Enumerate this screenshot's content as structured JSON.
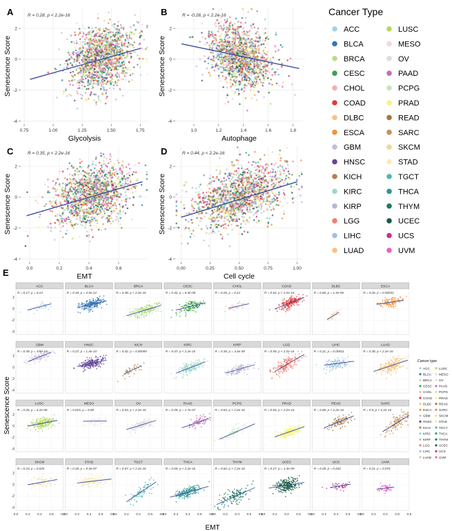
{
  "figure": {
    "colors": {
      "ACC": "#a8cfe6",
      "BLCA": "#2f78b8",
      "BRCA": "#b9dc8f",
      "CESC": "#3da04a",
      "CHOL": "#f2aeb0",
      "COAD": "#e23a3c",
      "DLBC": "#f6c28c",
      "ESCA": "#f29331",
      "GBM": "#cdb9da",
      "HNSC": "#6b4397",
      "KICH": "#b5804f",
      "KIRC": "#9fd6cc",
      "KIRP": "#b9b5d5",
      "LGG": "#f27f6f",
      "LIHC": "#9ec2de",
      "LUAD": "#f7c27d",
      "LUSC": "#b3d85d",
      "MESO": "#f6d5df",
      "OV": "#dcdcdc",
      "PAAD": "#c96bb2",
      "PCPG": "#c7e6b9",
      "PRAD": "#f7f37e",
      "READ": "#a8773a",
      "SARC": "#c59256",
      "SKCM": "#ecd89a",
      "STAD": "#faebb5",
      "TGCT": "#4cb8ac",
      "THCA": "#2f9693",
      "THYM": "#1c7a5d",
      "UCEC": "#1b5b42",
      "UCS": "#c2348c",
      "UVM": "#e363c9",
      "fit_line": "#3b4ea3"
    },
    "cancer_types": [
      "ACC",
      "BLCA",
      "BRCA",
      "CESC",
      "CHOL",
      "COAD",
      "DLBC",
      "ESCA",
      "GBM",
      "HNSC",
      "KICH",
      "KIRC",
      "KIRP",
      "LGG",
      "LIHC",
      "LUAD",
      "LUSC",
      "MESO",
      "OV",
      "PAAD",
      "PCPG",
      "PRAD",
      "READ",
      "SARC",
      "SKCM",
      "STAD",
      "TGCT",
      "THCA",
      "THYM",
      "UCEC",
      "UCS",
      "UVM"
    ],
    "legend_main_title": "Cancer Type",
    "legend_small_title": "Cancer type",
    "panel_e_label": "E",
    "panel_e_ylabel": "Senescence Score",
    "panel_e_xlabel": "EMT"
  },
  "chart_data": [
    {
      "type": "scatter",
      "panel": "A",
      "xlabel": "Glycolysis",
      "ylabel": "Senescence Score",
      "annotation": "R = 0.28, p < 2.2e-16",
      "xlim": [
        0.72,
        1.82
      ],
      "ylim": [
        -4.2,
        3.3
      ],
      "xticks": [
        0.75,
        1.0,
        1.25,
        1.5,
        1.75
      ],
      "xtick_labels": [
        "0.75",
        "1.00",
        "1.25",
        "1.50",
        "1.75"
      ],
      "yticks": [
        -4,
        -2,
        0,
        2
      ],
      "ytick_labels": [
        "-4",
        "-2",
        "0",
        "2"
      ],
      "cloud": {
        "x_center": 1.42,
        "x_sd": 0.14,
        "y_center": 0.15,
        "y_sd": 1.0,
        "r": 0.28
      },
      "fit": {
        "x": [
          0.8,
          1.75
        ],
        "y": [
          -1.3,
          0.7
        ]
      }
    },
    {
      "type": "scatter",
      "panel": "B",
      "xlabel": "Autophage",
      "ylabel": "Senescence Score",
      "annotation": "R = -0.28, p < 2.2e-16",
      "xlim": [
        0.85,
        1.88
      ],
      "ylim": [
        -4.2,
        3.3
      ],
      "xticks": [
        1.0,
        1.2,
        1.4,
        1.6,
        1.8
      ],
      "xtick_labels": [
        "1.0",
        "1.2",
        "1.4",
        "1.6",
        "1.8"
      ],
      "yticks": [
        -4,
        -2,
        0,
        2
      ],
      "ytick_labels": [
        "-4",
        "-2",
        "0",
        "2"
      ],
      "cloud": {
        "x_center": 1.38,
        "x_sd": 0.13,
        "y_center": 0.15,
        "y_sd": 1.0,
        "r": -0.28
      },
      "fit": {
        "x": [
          0.9,
          1.85
        ],
        "y": [
          1.0,
          -0.6
        ]
      }
    },
    {
      "type": "scatter",
      "panel": "C",
      "xlabel": "EMT",
      "ylabel": "Senescence Score",
      "annotation": "R = 0.35, p < 2.2e-16",
      "xlim": [
        -0.06,
        0.8
      ],
      "ylim": [
        -4.2,
        3.3
      ],
      "xticks": [
        0.0,
        0.2,
        0.4,
        0.6
      ],
      "xtick_labels": [
        "0.0",
        "0.2",
        "0.4",
        "0.6"
      ],
      "yticks": [
        -4,
        -2,
        0,
        2
      ],
      "ytick_labels": [
        "-4",
        "-2",
        "0",
        "2"
      ],
      "cloud": {
        "x_center": 0.42,
        "x_sd": 0.13,
        "y_center": 0.15,
        "y_sd": 1.0,
        "r": 0.35
      },
      "fit": {
        "x": [
          -0.02,
          0.76
        ],
        "y": [
          -1.2,
          1.0
        ]
      }
    },
    {
      "type": "scatter",
      "panel": "D",
      "xlabel": "Cell cycle",
      "ylabel": "Senescence Score",
      "annotation": "R = 0.44, p < 2.2e-16",
      "xlim": [
        -0.05,
        1.05
      ],
      "ylim": [
        -4.2,
        3.3
      ],
      "xticks": [
        0.0,
        0.25,
        0.5,
        0.75,
        1.0
      ],
      "xtick_labels": [
        "0.00",
        "0.25",
        "0.50",
        "0.75",
        "1.00"
      ],
      "yticks": [
        -4,
        -2,
        0,
        2
      ],
      "ytick_labels": [
        "-4",
        "-2",
        "0",
        "2"
      ],
      "cloud": {
        "x_center": 0.5,
        "x_sd": 0.2,
        "y_center": 0.15,
        "y_sd": 1.0,
        "r": 0.44
      },
      "fit": {
        "x": [
          0.0,
          1.0
        ],
        "y": [
          -1.3,
          1.0
        ]
      }
    },
    {
      "type": "scatter",
      "panel": "E",
      "layout": "facet grid 8 columns x 4 rows",
      "xlabel": "EMT",
      "ylabel": "Senescence Score",
      "xlim": [
        0.0,
        0.8
      ],
      "ylim": [
        -4.5,
        3.5
      ],
      "xticks": [
        0.0,
        0.2,
        0.4,
        0.6,
        0.8
      ],
      "xtick_labels": [
        "0.0",
        "0.2",
        "0.4",
        "0.6",
        "0.8"
      ],
      "yticks": [
        -4,
        -2,
        0,
        2
      ],
      "ytick_labels": [
        "-4",
        "-2",
        "0",
        "2"
      ],
      "facets": [
        {
          "name": "ACC",
          "annotation": "R = 0.17, p = 0.14",
          "x_center": 0.4,
          "x_sd": 0.12,
          "y_center": 0.3,
          "y_sd": 0.6,
          "n": 30,
          "fit": [
            [
              0.2,
              -0.2
            ],
            [
              0.6,
              0.9
            ]
          ]
        },
        {
          "name": "BLCA",
          "annotation": "R = 0.34, p = 4.5e-12",
          "x_center": 0.45,
          "x_sd": 0.1,
          "y_center": 0.8,
          "y_sd": 0.6,
          "n": 180,
          "fit": [
            [
              0.2,
              0.2
            ],
            [
              0.7,
              1.4
            ]
          ]
        },
        {
          "name": "BRCA",
          "annotation": "R = 0.38, p < 2.2e-16",
          "x_center": 0.5,
          "x_sd": 0.12,
          "y_center": -0.3,
          "y_sd": 0.6,
          "n": 220,
          "fit": [
            [
              0.2,
              -1.2
            ],
            [
              0.78,
              0.6
            ]
          ]
        },
        {
          "name": "CESC",
          "annotation": "R = 0.32, p = 6.4e-08",
          "x_center": 0.45,
          "x_sd": 0.1,
          "y_center": 0.4,
          "y_sd": 0.6,
          "n": 120,
          "fit": [
            [
              0.2,
              -0.2
            ],
            [
              0.7,
              1.1
            ]
          ]
        },
        {
          "name": "CHOL",
          "annotation": "R = 0.26, p = 0.12",
          "x_center": 0.4,
          "x_sd": 0.1,
          "y_center": 0.5,
          "y_sd": 0.5,
          "n": 25,
          "fit": [
            [
              0.25,
              0.1
            ],
            [
              0.6,
              0.9
            ]
          ]
        },
        {
          "name": "COAD",
          "annotation": "R = 0.62, p < 2.2e-16",
          "x_center": 0.45,
          "x_sd": 0.1,
          "y_center": 1.0,
          "y_sd": 0.6,
          "n": 180,
          "fit": [
            [
              0.2,
              0.0
            ],
            [
              0.7,
              2.0
            ]
          ]
        },
        {
          "name": "DLBC",
          "annotation": "R = 0.66, p = 1.4e-06",
          "x_center": 0.35,
          "x_sd": 0.06,
          "y_center": -1.3,
          "y_sd": 0.4,
          "n": 25,
          "fit": [
            [
              0.25,
              -1.9
            ],
            [
              0.45,
              -0.6
            ]
          ]
        },
        {
          "name": "ESCA",
          "annotation": "R = 0.26, p = 0.00042",
          "x_center": 0.5,
          "x_sd": 0.1,
          "y_center": 1.1,
          "y_sd": 0.5,
          "n": 110,
          "fit": [
            [
              0.25,
              0.8
            ],
            [
              0.7,
              1.5
            ]
          ]
        },
        {
          "name": "GBM",
          "annotation": "R = 0.49, p = 3.9e-10",
          "x_center": 0.4,
          "x_sd": 0.1,
          "y_center": 1.8,
          "y_sd": 0.5,
          "n": 90,
          "fit": [
            [
              0.2,
              1.0
            ],
            [
              0.6,
              2.7
            ]
          ]
        },
        {
          "name": "HNSC",
          "annotation": "R = 0.27, p = 1.4e-10",
          "x_center": 0.45,
          "x_sd": 0.1,
          "y_center": 0.6,
          "y_sd": 0.6,
          "n": 200,
          "fit": [
            [
              0.2,
              0.2
            ],
            [
              0.7,
              1.3
            ]
          ]
        },
        {
          "name": "KICH",
          "annotation": "R = 0.42, p = 0.00059",
          "x_center": 0.3,
          "x_sd": 0.08,
          "y_center": -0.5,
          "y_sd": 0.5,
          "n": 40,
          "fit": [
            [
              0.15,
              -1.2
            ],
            [
              0.45,
              0.3
            ]
          ]
        },
        {
          "name": "KIRC",
          "annotation": "R = 0.47, p < 2.2e-16",
          "x_center": 0.45,
          "x_sd": 0.1,
          "y_center": 0.0,
          "y_sd": 0.6,
          "n": 180,
          "fit": [
            [
              0.2,
              -1.0
            ],
            [
              0.7,
              1.0
            ]
          ]
        },
        {
          "name": "KIRP",
          "annotation": "R = 0.35, p = 3.4e-09",
          "x_center": 0.45,
          "x_sd": 0.1,
          "y_center": -0.3,
          "y_sd": 0.5,
          "n": 100,
          "fit": [
            [
              0.2,
              -1.0
            ],
            [
              0.7,
              0.5
            ]
          ]
        },
        {
          "name": "LGG",
          "annotation": "R = 0.59, p < 2.2e-16",
          "x_center": 0.4,
          "x_sd": 0.12,
          "y_center": 0.7,
          "y_sd": 0.8,
          "n": 180,
          "fit": [
            [
              0.2,
              -0.7
            ],
            [
              0.7,
              2.3
            ]
          ]
        },
        {
          "name": "LIHC",
          "annotation": "R = 0.21, p = 0.00011",
          "x_center": 0.4,
          "x_sd": 0.1,
          "y_center": 0.8,
          "y_sd": 0.6,
          "n": 130,
          "fit": [
            [
              0.2,
              0.4
            ],
            [
              0.7,
              1.1
            ]
          ]
        },
        {
          "name": "LUAD",
          "annotation": "R = 0.38, p < 2.2e-16",
          "x_center": 0.5,
          "x_sd": 0.1,
          "y_center": 0.3,
          "y_sd": 0.7,
          "n": 180,
          "fit": [
            [
              0.2,
              -0.7
            ],
            [
              0.78,
              1.3
            ]
          ]
        },
        {
          "name": "LUSC",
          "annotation": "R = 0.25, p = 4.1e-08",
          "x_center": 0.45,
          "x_sd": 0.1,
          "y_center": 0.4,
          "y_sd": 0.6,
          "n": 180,
          "fit": [
            [
              0.2,
              0.0
            ],
            [
              0.7,
              1.0
            ]
          ]
        },
        {
          "name": "MESO",
          "annotation": "R = 0.015, p = 0.89",
          "x_center": 0.5,
          "x_sd": 0.08,
          "y_center": 0.9,
          "y_sd": 0.4,
          "n": 30,
          "fit": [
            [
              0.3,
              0.85
            ],
            [
              0.7,
              0.9
            ]
          ]
        },
        {
          "name": "OV",
          "annotation": "R = 0.53, p < 2.2e-16",
          "x_center": 0.45,
          "x_sd": 0.1,
          "y_center": 0.2,
          "y_sd": 0.5,
          "n": 140,
          "fit": [
            [
              0.2,
              -0.6
            ],
            [
              0.7,
              1.0
            ]
          ]
        },
        {
          "name": "PAAD",
          "annotation": "R = 0.39, p = 1.7e-07",
          "x_center": 0.55,
          "x_sd": 0.1,
          "y_center": 0.6,
          "y_sd": 0.6,
          "n": 70,
          "fit": [
            [
              0.3,
              -0.3
            ],
            [
              0.75,
              1.3
            ]
          ]
        },
        {
          "name": "PCPG",
          "annotation": "R = 0.63, p < 2.2e-16",
          "x_center": 0.35,
          "x_sd": 0.1,
          "y_center": -1.2,
          "y_sd": 0.6,
          "n": 60,
          "fit": [
            [
              0.1,
              -2.3
            ],
            [
              0.7,
              0.4
            ]
          ]
        },
        {
          "name": "PRAD",
          "annotation": "R = 0.65, p < 2.2e-16",
          "x_center": 0.45,
          "x_sd": 0.1,
          "y_center": -1.0,
          "y_sd": 0.5,
          "n": 200,
          "fit": [
            [
              0.2,
              -1.9
            ],
            [
              0.7,
              -0.1
            ]
          ]
        },
        {
          "name": "READ",
          "annotation": "R = 0.68, p < 2.2e-16",
          "x_center": 0.45,
          "x_sd": 0.1,
          "y_center": 0.7,
          "y_sd": 0.6,
          "n": 90,
          "fit": [
            [
              0.2,
              -0.3
            ],
            [
              0.7,
              1.8
            ]
          ]
        },
        {
          "name": "SARC",
          "annotation": "R = 0.5, p < 2.2e-16",
          "x_center": 0.6,
          "x_sd": 0.1,
          "y_center": 0.5,
          "y_sd": 0.8,
          "n": 120,
          "fit": [
            [
              0.35,
              -1.0
            ],
            [
              0.8,
              1.9
            ]
          ]
        },
        {
          "name": "SKCM",
          "annotation": "R = 0.23, p = 0.025",
          "x_center": 0.45,
          "x_sd": 0.1,
          "y_center": 0.4,
          "y_sd": 0.6,
          "n": 50,
          "fit": [
            [
              0.2,
              0.0
            ],
            [
              0.7,
              0.9
            ]
          ]
        },
        {
          "name": "STAD",
          "annotation": "R = 0.26, p = 9.3e-07",
          "x_center": 0.45,
          "x_sd": 0.12,
          "y_center": 0.6,
          "y_sd": 0.6,
          "n": 150,
          "fit": [
            [
              0.2,
              0.3
            ],
            [
              0.78,
              1.0
            ]
          ]
        },
        {
          "name": "TGCT",
          "annotation": "R = 0.67, p < 2.2e-16",
          "x_center": 0.45,
          "x_sd": 0.12,
          "y_center": -1.3,
          "y_sd": 0.9,
          "n": 70,
          "fit": [
            [
              0.2,
              -3.0
            ],
            [
              0.7,
              0.5
            ]
          ]
        },
        {
          "name": "THCA",
          "annotation": "R = 0.55, p < 2.2e-16",
          "x_center": 0.4,
          "x_sd": 0.1,
          "y_center": -1.3,
          "y_sd": 0.5,
          "n": 180,
          "fit": [
            [
              0.1,
              -2.2
            ],
            [
              0.75,
              -0.3
            ]
          ]
        },
        {
          "name": "THYM",
          "annotation": "R = 0.62, p < 2.2e-16",
          "x_center": 0.35,
          "x_sd": 0.12,
          "y_center": -2.0,
          "y_sd": 0.8,
          "n": 120,
          "fit": [
            [
              0.05,
              -3.5
            ],
            [
              0.7,
              -0.5
            ]
          ]
        },
        {
          "name": "UCEC",
          "annotation": "R = 0.27, p = 1.3e-09",
          "x_center": 0.4,
          "x_sd": 0.1,
          "y_center": -0.1,
          "y_sd": 0.7,
          "n": 220,
          "fit": [
            [
              0.1,
              -0.6
            ],
            [
              0.7,
              0.4
            ]
          ]
        },
        {
          "name": "UCS",
          "annotation": "R = 0.28, p = 0.042",
          "x_center": 0.45,
          "x_sd": 0.08,
          "y_center": -0.2,
          "y_sd": 0.5,
          "n": 40,
          "fit": [
            [
              0.3,
              -0.5
            ],
            [
              0.65,
              0.1
            ]
          ]
        },
        {
          "name": "UVM",
          "annotation": "R = 0.21, p = 0.076",
          "x_center": 0.4,
          "x_sd": 0.06,
          "y_center": -0.6,
          "y_sd": 0.4,
          "n": 50,
          "fit": [
            [
              0.25,
              -0.8
            ],
            [
              0.55,
              -0.4
            ]
          ]
        }
      ]
    }
  ]
}
